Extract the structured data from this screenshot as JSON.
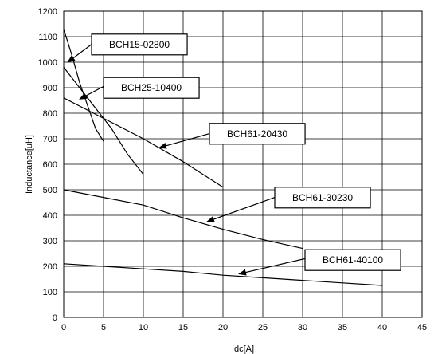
{
  "chart_data": {
    "type": "line",
    "title": "",
    "xlabel": "Idc[A]",
    "ylabel": "Inductance[uH]",
    "xlim": [
      0,
      45
    ],
    "ylim": [
      0,
      1200
    ],
    "xticks": [
      0,
      5,
      10,
      15,
      20,
      25,
      30,
      35,
      40,
      45
    ],
    "yticks": [
      0,
      100,
      200,
      300,
      400,
      500,
      600,
      700,
      800,
      900,
      1000,
      1100,
      1200
    ],
    "grid": true,
    "legend": "callout-labels",
    "series": [
      {
        "name": "BCH15-02800",
        "x": [
          0,
          1,
          2,
          3,
          4,
          5
        ],
        "y": [
          1130,
          1030,
          920,
          830,
          740,
          690
        ]
      },
      {
        "name": "BCH25-10400",
        "x": [
          0,
          2,
          4,
          6,
          8,
          10
        ],
        "y": [
          980,
          900,
          820,
          740,
          640,
          560
        ]
      },
      {
        "name": "BCH61-20430",
        "x": [
          0,
          5,
          10,
          15,
          20
        ],
        "y": [
          860,
          780,
          700,
          610,
          510
        ]
      },
      {
        "name": "BCH61-30230",
        "x": [
          0,
          5,
          10,
          15,
          20,
          25,
          30
        ],
        "y": [
          500,
          470,
          440,
          390,
          345,
          305,
          270
        ]
      },
      {
        "name": "BCH61-40100",
        "x": [
          0,
          5,
          10,
          15,
          20,
          25,
          30,
          35,
          40
        ],
        "y": [
          210,
          200,
          190,
          180,
          165,
          155,
          145,
          135,
          125
        ]
      }
    ]
  },
  "callouts": [
    {
      "label": "BCH15-02800",
      "box_x": 3.5,
      "box_y": 1110,
      "arrow_x": 0.5,
      "arrow_y": 1000,
      "tail_x": 3.5,
      "tail_y": 1070
    },
    {
      "label": "BCH25-10400",
      "box_x": 5,
      "box_y": 940,
      "arrow_x": 2,
      "arrow_y": 855,
      "tail_x": 5,
      "tail_y": 905
    },
    {
      "label": "BCH61-20430",
      "box_x": 18.3,
      "box_y": 760,
      "arrow_x": 12,
      "arrow_y": 665,
      "tail_x": 18.3,
      "tail_y": 720
    },
    {
      "label": "BCH61-30230",
      "box_x": 26.5,
      "box_y": 510,
      "arrow_x": 18,
      "arrow_y": 375,
      "tail_x": 26.5,
      "tail_y": 470
    },
    {
      "label": "BCH61-40100",
      "box_x": 30.3,
      "box_y": 265,
      "arrow_x": 22,
      "arrow_y": 170,
      "tail_x": 30.3,
      "tail_y": 230
    }
  ]
}
